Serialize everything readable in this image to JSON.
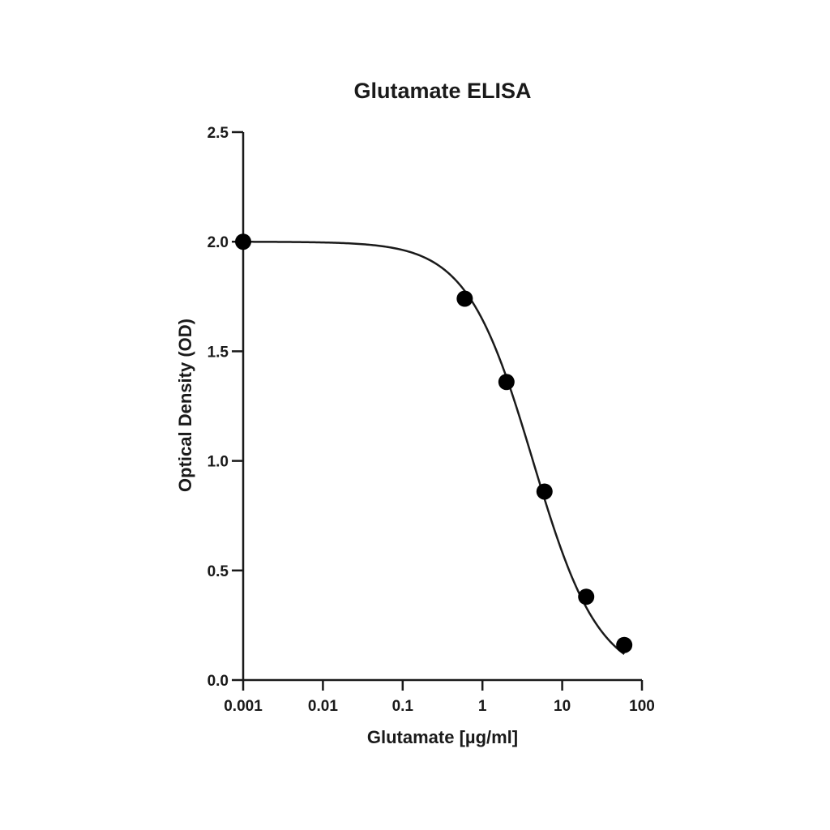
{
  "chart_data": {
    "type": "scatter",
    "title": "Glutamate ELISA",
    "xlabel": "Glutamate [µg/ml]",
    "ylabel": "Optical Density (OD)",
    "x_scale": "log",
    "xlim": [
      0.001,
      100
    ],
    "ylim": [
      0,
      2.5
    ],
    "x_ticks": [
      0.001,
      0.01,
      0.1,
      1,
      10,
      100
    ],
    "x_tick_labels": [
      "0.001",
      "0.01",
      "0.1",
      "1",
      "10",
      "100"
    ],
    "y_ticks": [
      0,
      0.5,
      1.0,
      1.5,
      2.0,
      2.5
    ],
    "y_tick_labels": [
      "0.0",
      "0.5",
      "1.0",
      "1.5",
      "2.0",
      "2.5"
    ],
    "grid": false,
    "legend": "none",
    "series": [
      {
        "x": [
          0.001,
          0.6,
          2,
          6,
          20,
          60
        ],
        "y": [
          2.0,
          1.74,
          1.36,
          0.86,
          0.38,
          0.16
        ]
      }
    ],
    "fit": {
      "type": "4PL",
      "top": 2.0,
      "bottom": 0.0,
      "ec50": 4.3,
      "hill": 1.05
    }
  }
}
